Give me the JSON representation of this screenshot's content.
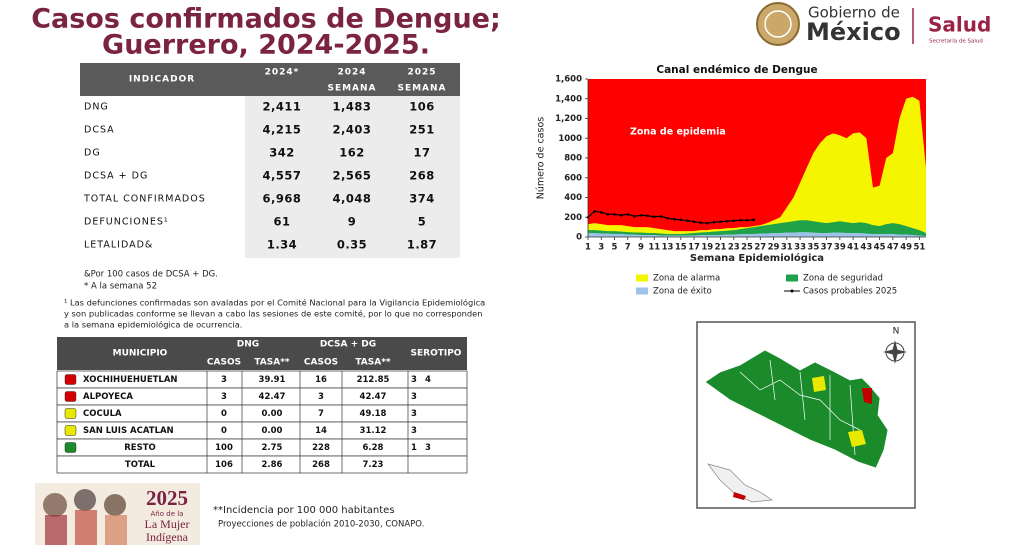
{
  "header": {
    "title": [
      "Casos confirmados de Dengue;",
      "Guerrero, 2024-2025."
    ],
    "logo": {
      "gob_1": "Gobierno de",
      "gob_2": "México",
      "salud": "Salud",
      "secretaria": "Secretaría de Salud"
    }
  },
  "table": {
    "header": [
      [
        "INDICADOR"
      ],
      [
        "2024*"
      ],
      [
        "2024",
        "SEMANA"
      ],
      [
        "2025",
        "SEMANA"
      ]
    ],
    "rows": [
      [
        "DNG",
        "2,411",
        "1,483",
        "106"
      ],
      [
        "DCSA",
        "4,215",
        "2,403",
        "251"
      ],
      [
        "DG",
        "342",
        "162",
        "17"
      ],
      [
        "DCSA + DG",
        "4,557",
        "2,565",
        "268"
      ],
      [
        "TOTAL CONFIRMADOS",
        "6,968",
        "4,048",
        "374"
      ],
      [
        "DEFUNCIONES¹",
        "61",
        "9",
        "5"
      ],
      [
        "LETALIDAD&",
        "1.34",
        "0.35",
        "1.87"
      ]
    ]
  },
  "notes": [
    "&Por 100 casos de DCSA + DG.",
    "* A la semana 52"
  ],
  "footnote": [
    "¹ Las defunciones confirmadas son avaladas por el Comité Nacional para la Vigilancia Epidemiológica",
    "y son publicadas conforme se llevan a cabo las sesiones de este comité, por lo que no corresponden",
    "a la semana epidemiológica de ocurrencia."
  ],
  "municipios": {
    "header": {
      "municipio": "MUNICIPIO",
      "dng": "DNG",
      "dcsa": "DCSA + DG",
      "serotipo": "SEROTIPO",
      "sub": [
        "CASOS",
        "TASA**",
        "CASOS",
        "TASA**"
      ]
    },
    "rows": [
      {
        "name": "XOCHIHUEHUETLAN",
        "color": "#d40000",
        "cells": [
          "3",
          "39.91",
          "16",
          "212.85"
        ],
        "serotipo": [
          "3",
          "4"
        ]
      },
      {
        "name": "ALPOYECA",
        "color": "#d40000",
        "cells": [
          "3",
          "42.47",
          "3",
          "42.47"
        ],
        "serotipo": [
          "3"
        ]
      },
      {
        "name": "COCULA",
        "color": "#e8e800",
        "cells": [
          "0",
          "0.00",
          "7",
          "49.18"
        ],
        "serotipo": [
          "3"
        ]
      },
      {
        "name": "SAN LUIS ACATLAN",
        "color": "#e8e800",
        "cells": [
          "0",
          "0.00",
          "14",
          "31.12"
        ],
        "serotipo": [
          "3"
        ]
      },
      {
        "name": "RESTO",
        "color": "#1a8a2a",
        "cells": [
          "100",
          "2.75",
          "228",
          "6.28"
        ],
        "serotipo": [
          "1",
          "3"
        ]
      },
      {
        "name": "TOTAL",
        "cells": [
          "106",
          "2.86",
          "268",
          "7.23"
        ],
        "serotipo": []
      }
    ]
  },
  "incidencia": [
    "**Incidencia por 100 000 habitantes",
    "Proyecciones de población 2010-2030,  CONAPO."
  ],
  "banner": {
    "year": "2025",
    "line1": "Año de la",
    "line2": "La Mujer",
    "line3": "Indígena"
  },
  "map": {
    "north": "N"
  },
  "chart_data": {
    "type": "area",
    "title": "Canal endémico de Dengue",
    "ylabel": "Número de casos",
    "xlabel": "Semana Epidemiológica",
    "annotation": "Zona de epidemia",
    "plot_color": "#ff0000",
    "x": [
      1,
      2,
      3,
      4,
      5,
      6,
      7,
      8,
      9,
      10,
      11,
      12,
      13,
      14,
      15,
      16,
      17,
      18,
      19,
      20,
      21,
      22,
      23,
      24,
      25,
      26,
      27,
      28,
      29,
      30,
      31,
      32,
      33,
      34,
      35,
      36,
      37,
      38,
      39,
      40,
      41,
      42,
      43,
      44,
      45,
      46,
      47,
      48,
      49,
      50,
      51,
      52
    ],
    "xlim": [
      1,
      52
    ],
    "xticks": [
      1,
      3,
      5,
      7,
      9,
      11,
      13,
      15,
      17,
      19,
      21,
      23,
      25,
      27,
      29,
      31,
      33,
      35,
      37,
      39,
      41,
      43,
      45,
      47,
      49,
      51
    ],
    "ylim": [
      0,
      1600
    ],
    "yticks": [
      0,
      200,
      400,
      600,
      800,
      1000,
      {
        "value": 1200,
        "label": "1,200"
      },
      {
        "value": 1400,
        "label": "1,400"
      },
      {
        "value": 1600,
        "label": "1,600"
      }
    ],
    "series": [
      {
        "name": "Zona de alarma",
        "kind": "area",
        "color": "#f5f500",
        "values": [
          130,
          140,
          130,
          120,
          120,
          120,
          110,
          100,
          100,
          100,
          90,
          80,
          70,
          60,
          60,
          60,
          60,
          70,
          70,
          80,
          80,
          90,
          90,
          100,
          100,
          110,
          120,
          140,
          170,
          200,
          300,
          400,
          550,
          700,
          850,
          950,
          1020,
          1050,
          1030,
          1000,
          1050,
          1060,
          1000,
          500,
          520,
          800,
          850,
          1200,
          1400,
          1420,
          1380,
          700
        ]
      },
      {
        "name": "Zona de seguridad",
        "kind": "area",
        "color": "#1fa24a",
        "values": [
          70,
          70,
          65,
          60,
          60,
          55,
          50,
          45,
          45,
          40,
          40,
          35,
          30,
          30,
          30,
          35,
          40,
          45,
          50,
          55,
          60,
          65,
          70,
          80,
          90,
          100,
          110,
          120,
          130,
          140,
          150,
          160,
          170,
          170,
          160,
          150,
          140,
          150,
          160,
          150,
          140,
          150,
          140,
          120,
          110,
          130,
          140,
          130,
          110,
          90,
          70,
          40
        ]
      },
      {
        "name": "Zona de éxito",
        "kind": "area",
        "color": "#9ec3e6",
        "values": [
          40,
          40,
          35,
          35,
          30,
          30,
          25,
          25,
          20,
          20,
          20,
          15,
          15,
          15,
          15,
          15,
          15,
          20,
          20,
          20,
          20,
          25,
          25,
          30,
          30,
          30,
          35,
          35,
          40,
          40,
          45,
          45,
          50,
          50,
          45,
          40,
          40,
          45,
          45,
          40,
          40,
          40,
          35,
          30,
          30,
          30,
          30,
          25,
          25,
          20,
          15,
          10
        ]
      },
      {
        "name": "Casos probables 2025",
        "kind": "line",
        "color": "#000000",
        "values": [
          200,
          260,
          250,
          230,
          230,
          220,
          230,
          210,
          220,
          215,
          205,
          210,
          190,
          180,
          175,
          165,
          155,
          145,
          140,
          150,
          155,
          160,
          165,
          170,
          170,
          175,
          null,
          null,
          null,
          null,
          null,
          null,
          null,
          null,
          null,
          null,
          null,
          null,
          null,
          null,
          null,
          null,
          null,
          null,
          null,
          null,
          null,
          null,
          null,
          null,
          null,
          null
        ]
      }
    ]
  }
}
